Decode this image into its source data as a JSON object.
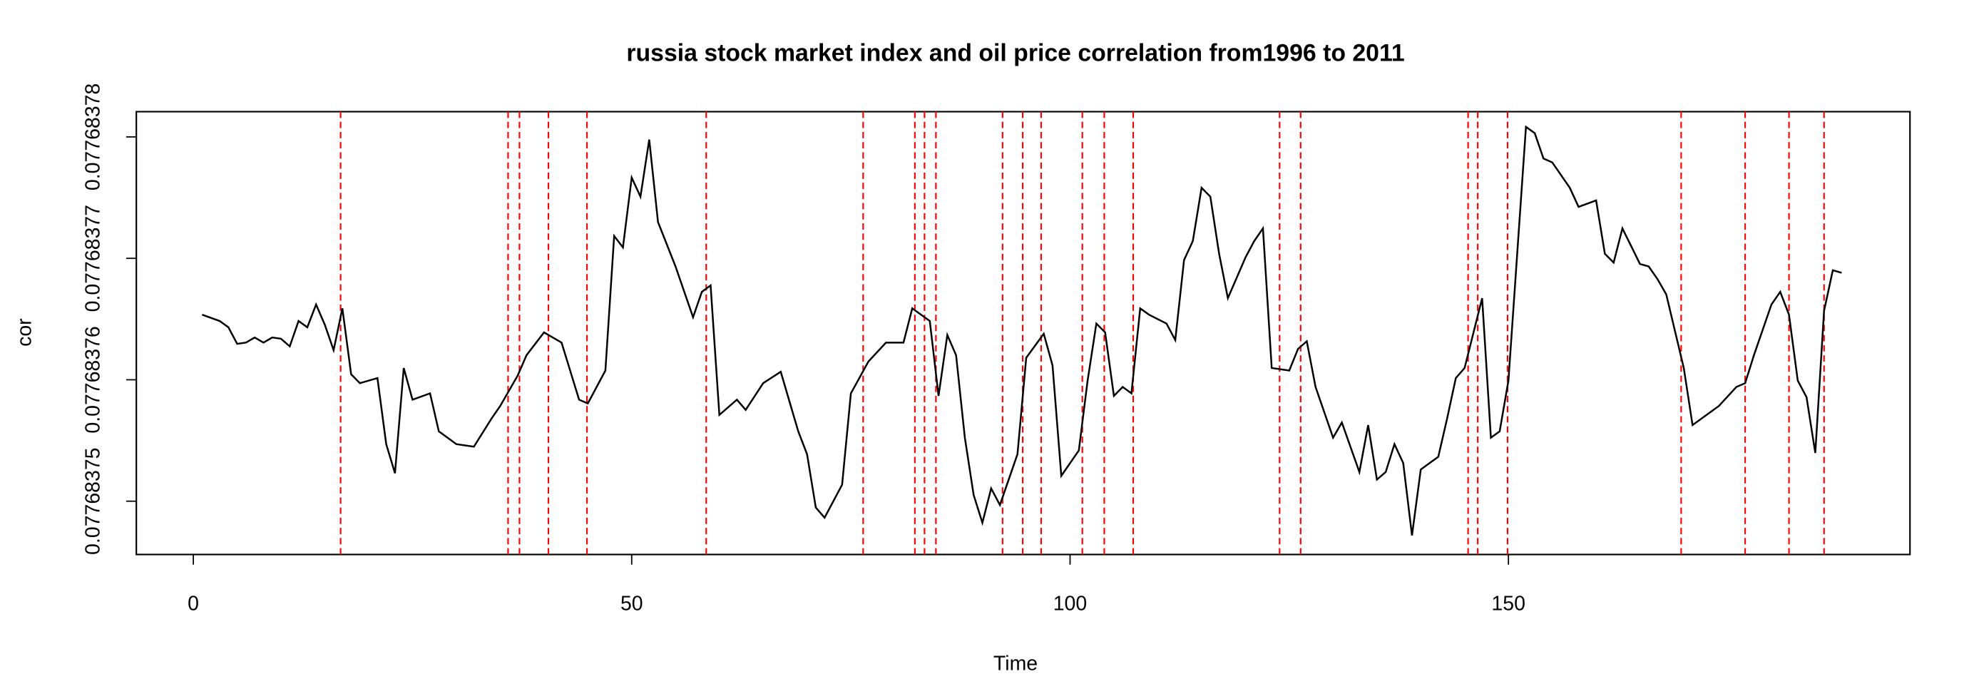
{
  "chart_data": {
    "type": "line",
    "title": "russia stock market index and oil price correlation from1996 to 2011",
    "x_label": "Time",
    "y_label": "cor",
    "xlim": [
      -6.5,
      195.8
    ],
    "xticks": [
      0,
      50,
      100,
      150
    ],
    "ylim": [
      0.07768374561,
      0.07768378208
    ],
    "yticks": [
      {
        "value": 0.07768375,
        "label": "0.07768375"
      },
      {
        "value": 0.07768376,
        "label": "0.07768376"
      },
      {
        "value": 0.07768377,
        "label": "0.07768377"
      },
      {
        "value": 0.07768378,
        "label": "0.07768378"
      }
    ],
    "series": [
      {
        "color": "#000000",
        "x": [
          1,
          3,
          4,
          5,
          6,
          7,
          8,
          9,
          10,
          11,
          12,
          13,
          14,
          15,
          16,
          17,
          18,
          19,
          21,
          22,
          23,
          24,
          25,
          27,
          28,
          30,
          32,
          34,
          35,
          37,
          38,
          40,
          42,
          44,
          45,
          47,
          48,
          49,
          50,
          51,
          52,
          53,
          55,
          57,
          58,
          59,
          60,
          62,
          63,
          65,
          67,
          69,
          70,
          71,
          72,
          74,
          75,
          77,
          79,
          81,
          82,
          84,
          85,
          86,
          87,
          88,
          89,
          90,
          91,
          92,
          94,
          95,
          97,
          98,
          99,
          101,
          102,
          103,
          104,
          105,
          106,
          107,
          108,
          109,
          111,
          112,
          113,
          114,
          115,
          116,
          117,
          118,
          120,
          121,
          122,
          123,
          125,
          126,
          127,
          128,
          130,
          131,
          133,
          134,
          135,
          136,
          137,
          138,
          139,
          140,
          142,
          143,
          144,
          145,
          147,
          148,
          149,
          150,
          152,
          153,
          154,
          155,
          157,
          158,
          160,
          161,
          162,
          163,
          165,
          166,
          167,
          168,
          170,
          171,
          173,
          174,
          176,
          177,
          178,
          180,
          181,
          182,
          183,
          184,
          185,
          186,
          187,
          188
        ],
        "values": [
          0.07768376536,
          0.07768376484,
          0.07768376432,
          0.07768376296,
          0.07768376306,
          0.07768376348,
          0.07768376306,
          0.07768376348,
          0.07768376338,
          0.07768376275,
          0.07768376484,
          0.07768376432,
          0.0776837662,
          0.07768376453,
          0.07768376244,
          0.07768376588,
          0.07768376045,
          0.07768375972,
          0.07768376014,
          0.0776837547,
          0.0776837523,
          0.07768376097,
          0.07768375836,
          0.07768375888,
          0.07768375575,
          0.0776837547,
          0.07768375449,
          0.07768375679,
          0.07768375784,
          0.07768376035,
          0.07768376202,
          0.0776837639,
          0.07768376306,
          0.07768375836,
          0.07768375805,
          0.07768376076,
          0.07768377184,
          0.0776837709,
          0.07768377665,
          0.07768377508,
          0.07768377978,
          0.07768377299,
          0.07768376933,
          0.07768376515,
          0.07768376724,
          0.07768376777,
          0.07768375711,
          0.07768375836,
          0.07768375752,
          0.07768375972,
          0.07768376066,
          0.07768375575,
          0.07768375387,
          0.07768374948,
          0.07768374864,
          0.07768375136,
          0.07768375888,
          0.0776837615,
          0.07768376306,
          0.07768376306,
          0.07768376588,
          0.07768376484,
          0.07768375867,
          0.07768376369,
          0.07768376202,
          0.07768375523,
          0.07768375052,
          0.07768374822,
          0.07768375105,
          0.07768374969,
          0.07768375387,
          0.07768376181,
          0.07768376379,
          0.07768376118,
          0.07768375209,
          0.07768375418,
          0.07768375993,
          0.07768376463,
          0.0776837639,
          0.07768375867,
          0.07768375941,
          0.07768375888,
          0.07768376588,
          0.07768376536,
          0.07768376463,
          0.07768376327,
          0.07768376986,
          0.07768377142,
          0.07768377581,
          0.07768377508,
          0.07768377038,
          0.07768376672,
          0.07768377006,
          0.07768377142,
          0.07768377247,
          0.07768376097,
          0.07768376076,
          0.07768376254,
          0.07768376317,
          0.07768375941,
          0.07768375523,
          0.07768375648,
          0.0776837524,
          0.07768375627,
          0.07768375178,
          0.0776837524,
          0.0776837547,
          0.07768375314,
          0.07768374718,
          0.07768375261,
          0.07768375366,
          0.07768375679,
          0.07768376014,
          0.07768376097,
          0.07768376672,
          0.07768375523,
          0.07768375575,
          0.07768375993,
          0.07768378083,
          0.07768378031,
          0.07768377822,
          0.0776837779,
          0.07768377581,
          0.07768377424,
          0.07768377477,
          0.07768377038,
          0.07768376965,
          0.07768377247,
          0.07768376954,
          0.07768376933,
          0.07768376829,
          0.07768376703,
          0.07768376097,
          0.07768375627,
          0.07768375732,
          0.07768375784,
          0.07768375941,
          0.07768375972,
          0.07768376202,
          0.0776837662,
          0.07768376724,
          0.07768376536,
          0.07768375993,
          0.07768375857,
          0.07768375397,
          0.07768376568,
          0.07768376902,
          0.07768376881
        ]
      }
    ],
    "vlines": {
      "color": "#ff0000",
      "x": [
        16.8,
        35.9,
        37.2,
        40.5,
        44.9,
        58.5,
        76.4,
        82.3,
        83.4,
        84.7,
        92.3,
        94.6,
        96.7,
        101.4,
        103.9,
        107.2,
        123.9,
        126.3,
        145.4,
        146.5,
        149.9,
        169.7,
        177,
        182,
        186
      ]
    }
  }
}
